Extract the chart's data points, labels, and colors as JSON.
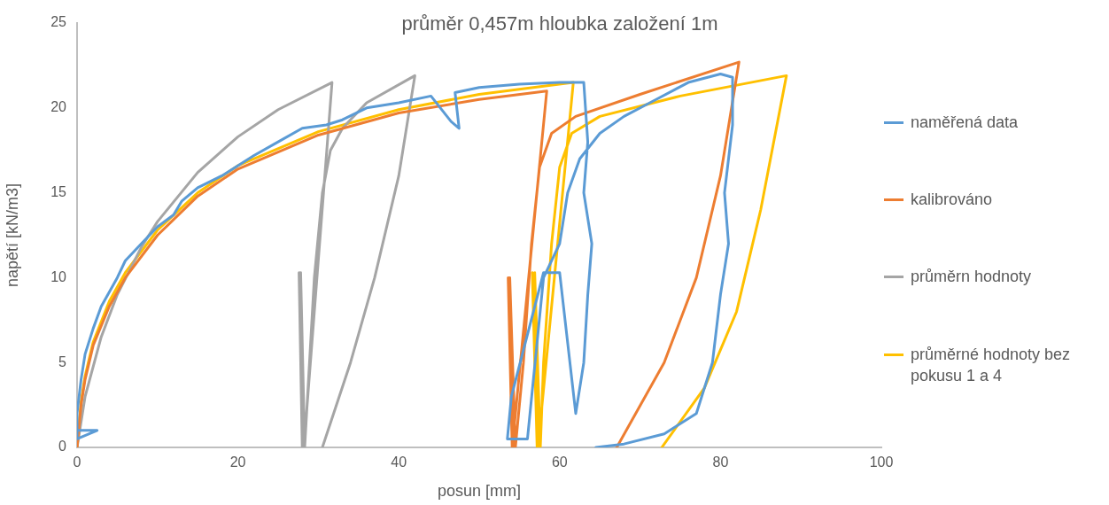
{
  "chart_data": {
    "type": "line",
    "title": "průměr 0,457m hloubka založení 1m",
    "xlabel": "posun [mm]",
    "ylabel": "napětí [kN/m3]",
    "xlim": [
      0,
      100
    ],
    "xticks": [
      0,
      20,
      40,
      60,
      80,
      100
    ],
    "ylim": [
      0,
      25
    ],
    "yticks": [
      0,
      5,
      10,
      15,
      20,
      25
    ],
    "grid": false,
    "legend": "right",
    "marker": "none",
    "series": [
      {
        "name": "naměřená data",
        "color": "#5b9bd5",
        "x": [
          0,
          2.5,
          0,
          0,
          0.5,
          1,
          2,
          3,
          5,
          6,
          8,
          10,
          12,
          13,
          15,
          18,
          20,
          22,
          25,
          28,
          31,
          33,
          36,
          40,
          44,
          46.5,
          47.5,
          47,
          50,
          55,
          60,
          63,
          63.5,
          63,
          64,
          63.5,
          63,
          62,
          60,
          58,
          54,
          53.5,
          56,
          58,
          60,
          61,
          62.5,
          65,
          68,
          72,
          76,
          80,
          81.5,
          81.5,
          80.5,
          81,
          80,
          79,
          77,
          73,
          68,
          64.5
        ],
        "values": [
          1,
          1,
          0.5,
          2,
          4,
          5.5,
          7,
          8.3,
          10,
          11,
          12,
          13,
          13.7,
          14.5,
          15.3,
          16,
          16.6,
          17.2,
          18,
          18.8,
          19,
          19.3,
          20,
          20.3,
          20.7,
          19.2,
          18.8,
          20.9,
          21.2,
          21.4,
          21.5,
          21.5,
          18,
          15,
          12,
          9,
          5,
          2,
          10.3,
          10.3,
          3,
          0.5,
          0.5,
          10,
          12,
          15,
          17,
          18.5,
          19.5,
          20.5,
          21.5,
          22,
          21.8,
          19,
          15,
          12,
          9,
          5,
          2,
          0.8,
          0.2,
          0
        ]
      },
      {
        "name": "kalibrováno",
        "color": "#ed7d31",
        "x": [
          0,
          0.5,
          1,
          2,
          4,
          6,
          10,
          15,
          20,
          30,
          40,
          50,
          58.4,
          54.1,
          53.6,
          54.3,
          53.8,
          54.5,
          55.5,
          56.5,
          57.5,
          59,
          62,
          70,
          82.3,
          80,
          77,
          73,
          67.1
        ],
        "values": [
          0,
          2.5,
          4,
          6,
          8.3,
          10,
          12.5,
          14.8,
          16.4,
          18.4,
          19.7,
          20.5,
          21,
          0,
          10,
          0,
          10,
          0,
          5,
          12,
          16.5,
          18.5,
          19.5,
          20.8,
          22.7,
          16,
          10,
          5,
          0
        ]
      },
      {
        "name": "průměrn hodnoty",
        "color": "#a5a5a5",
        "x": [
          0,
          1,
          3,
          5,
          8,
          10,
          15,
          20,
          25,
          31.7,
          28.2,
          27.6,
          28,
          27.8,
          28.3,
          29.5,
          30.5,
          31.5,
          33,
          36,
          42,
          40,
          37,
          34,
          30.5
        ],
        "values": [
          0,
          3,
          6.5,
          9,
          11.8,
          13.3,
          16.2,
          18.3,
          19.9,
          21.5,
          0,
          10.3,
          0,
          10.3,
          0,
          10,
          15,
          17.5,
          18.8,
          20.3,
          21.9,
          16,
          10,
          5,
          0
        ]
      },
      {
        "name": "průměrné hodnoty bez pokusu 1 a 4",
        "color": "#ffc000",
        "x": [
          0,
          0.5,
          1,
          2,
          4,
          6,
          10,
          15,
          20,
          30,
          40,
          50,
          61.7,
          57.3,
          56.6,
          57.2,
          56.9,
          57.6,
          58,
          59,
          60,
          61.5,
          65,
          75,
          88.2,
          85,
          82,
          78,
          72.7
        ],
        "values": [
          0,
          2.7,
          4.2,
          6.2,
          8.6,
          10.3,
          12.8,
          15,
          16.6,
          18.6,
          19.9,
          20.8,
          21.5,
          0,
          10.3,
          0,
          10.3,
          0,
          5,
          12,
          16.5,
          18.5,
          19.5,
          20.7,
          21.9,
          14,
          8,
          3.5,
          0
        ]
      }
    ]
  }
}
